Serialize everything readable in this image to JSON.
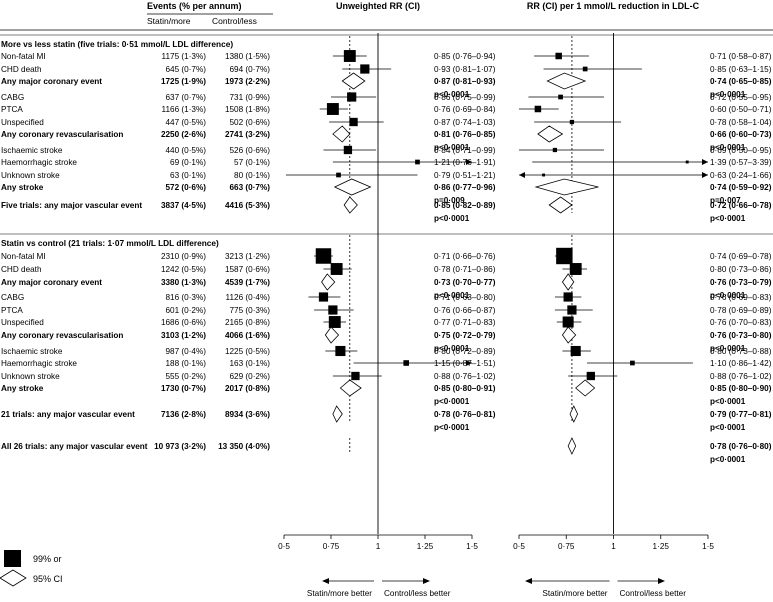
{
  "header": {
    "events_title": "Events (% per annum)",
    "statin_col": "Statin/more",
    "control_col": "Control/less",
    "panel1_title": "Unweighted RR (CI)",
    "panel2_title": "RR (CI) per 1 mmol/L reduction in LDL-C"
  },
  "legend": {
    "square_label": "99% or",
    "diamond_label": "95% CI"
  },
  "axis": {
    "ticks": [
      "0·5",
      "0·75",
      "1",
      "1·25",
      "1·5"
    ],
    "left_arrow_label": "Statin/more better",
    "right_arrow_label": "Control/less better"
  },
  "chart_data": [
    {
      "type": "forest",
      "title": "Unweighted RR (CI)",
      "xlim": [
        0.5,
        1.5
      ],
      "reference_line": 1,
      "dashed_line": 0.85,
      "rows": [
        {
          "label": "More vs less statin (five trials: 0·51 mmol/L LDL difference)",
          "kind": "header"
        },
        {
          "label": "Non-fatal MI",
          "statin": "1175 (1·3%)",
          "control": "1380 (1·5%)",
          "rr": 0.85,
          "lo": 0.76,
          "hi": 0.94,
          "text": "0·85 (0·76–0·94)",
          "kind": "square",
          "size": 1.1
        },
        {
          "label": "CHD death",
          "statin": "645 (0·7%)",
          "control": "694 (0·7%)",
          "rr": 0.93,
          "lo": 0.81,
          "hi": 1.07,
          "text": "0·93 (0·81–1·07)",
          "kind": "square",
          "size": 0.8
        },
        {
          "label": "Any major coronary event",
          "statin": "1725 (1·9%)",
          "control": "1973 (2·2%)",
          "rr": 0.87,
          "lo": 0.81,
          "hi": 0.93,
          "text": "0·87 (0·81–0·93)",
          "p": "p<0·0001",
          "kind": "diamond"
        },
        {
          "label": "CABG",
          "statin": "637 (0·7%)",
          "control": "731 (0·9%)",
          "rr": 0.86,
          "lo": 0.75,
          "hi": 0.99,
          "text": "0·86 (0·75–0·99)",
          "kind": "square",
          "size": 0.8
        },
        {
          "label": "PTCA",
          "statin": "1166 (1·3%)",
          "control": "1508 (1·8%)",
          "rr": 0.76,
          "lo": 0.69,
          "hi": 0.84,
          "text": "0·76 (0·69–0·84)",
          "kind": "square",
          "size": 1.1
        },
        {
          "label": "Unspecified",
          "statin": "447 (0·5%)",
          "control": "502 (0·6%)",
          "rr": 0.87,
          "lo": 0.74,
          "hi": 1.03,
          "text": "0·87 (0·74–1·03)",
          "kind": "square",
          "size": 0.7
        },
        {
          "label": "Any coronary revascularisation",
          "statin": "2250 (2·6%)",
          "control": "2741 (3·2%)",
          "rr": 0.81,
          "lo": 0.76,
          "hi": 0.85,
          "text": "0·81 (0·76–0·85)",
          "p": "p<0·0001",
          "kind": "diamond"
        },
        {
          "label": "Ischaemic stroke",
          "statin": "440 (0·5%)",
          "control": "526 (0·6%)",
          "rr": 0.84,
          "lo": 0.71,
          "hi": 0.99,
          "text": "0·84 (0·71–0·99)",
          "kind": "square",
          "size": 0.7
        },
        {
          "label": "Haemorrhagic stroke",
          "statin": "69 (0·1%)",
          "control": "57 (0·1%)",
          "rr": 1.21,
          "lo": 0.76,
          "hi": 1.91,
          "text": "1·21 (0·76–1·91)",
          "kind": "square",
          "size": 0.3
        },
        {
          "label": "Unknown stroke",
          "statin": "63 (0·1%)",
          "control": "80 (0·1%)",
          "rr": 0.79,
          "lo": 0.51,
          "hi": 1.21,
          "text": "0·79 (0·51–1·21)",
          "kind": "square",
          "size": 0.3
        },
        {
          "label": "Any stroke",
          "statin": "572 (0·6%)",
          "control": "663 (0·7%)",
          "rr": 0.86,
          "lo": 0.77,
          "hi": 0.96,
          "text": "0·86 (0·77–0·96)",
          "p": "p=0·009",
          "kind": "diamond"
        },
        {
          "label": "Five trials: any major vascular event",
          "statin": "3837 (4·5%)",
          "control": "4416 (5·3%)",
          "rr": 0.85,
          "lo": 0.82,
          "hi": 0.89,
          "text": "0·85 (0·82–0·89)",
          "p": "p<0·0001",
          "kind": "diamond"
        },
        {
          "label": "Statin vs control (21 trials: 1·07 mmol/L LDL difference)",
          "kind": "header"
        },
        {
          "label": "Non-fatal MI",
          "statin": "2310 (0·9%)",
          "control": "3213 (1·2%)",
          "rr": 0.71,
          "lo": 0.66,
          "hi": 0.76,
          "text": "0·71 (0·66–0·76)",
          "kind": "square",
          "size": 1.5
        },
        {
          "label": "CHD death",
          "statin": "1242 (0·5%)",
          "control": "1587 (0·6%)",
          "rr": 0.78,
          "lo": 0.71,
          "hi": 0.86,
          "text": "0·78 (0·71–0·86)",
          "kind": "square",
          "size": 1.1
        },
        {
          "label": "Any major coronary event",
          "statin": "3380 (1·3%)",
          "control": "4539 (1·7%)",
          "rr": 0.73,
          "lo": 0.7,
          "hi": 0.77,
          "text": "0·73 (0·70–0·77)",
          "p": "p<0·0001",
          "kind": "diamond"
        },
        {
          "label": "CABG",
          "statin": "816 (0·3%)",
          "control": "1126 (0·4%)",
          "rr": 0.71,
          "lo": 0.63,
          "hi": 0.8,
          "text": "0·71 (0·63–0·80)",
          "kind": "square",
          "size": 0.8
        },
        {
          "label": "PTCA",
          "statin": "601 (0·2%)",
          "control": "775 (0·3%)",
          "rr": 0.76,
          "lo": 0.66,
          "hi": 0.87,
          "text": "0·76 (0·66–0·87)",
          "kind": "square",
          "size": 0.8
        },
        {
          "label": "Unspecified",
          "statin": "1686 (0·6%)",
          "control": "2165 (0·8%)",
          "rr": 0.77,
          "lo": 0.71,
          "hi": 0.83,
          "text": "0·77 (0·71–0·83)",
          "kind": "square",
          "size": 1.1
        },
        {
          "label": "Any coronary revascularisation",
          "statin": "3103 (1·2%)",
          "control": "4066 (1·6%)",
          "rr": 0.75,
          "lo": 0.72,
          "hi": 0.79,
          "text": "0·75 (0·72–0·79)",
          "p": "p<0·0001",
          "kind": "diamond"
        },
        {
          "label": "Ischaemic stroke",
          "statin": "987 (0·4%)",
          "control": "1225 (0·5%)",
          "rr": 0.8,
          "lo": 0.72,
          "hi": 0.89,
          "text": "0·80 (0·72–0·89)",
          "kind": "square",
          "size": 0.9
        },
        {
          "label": "Haemorrhagic stroke",
          "statin": "188 (0·1%)",
          "control": "163 (0·1%)",
          "rr": 1.15,
          "lo": 0.87,
          "hi": 1.51,
          "text": "1·15 (0·87–1·51)",
          "kind": "square",
          "size": 0.4
        },
        {
          "label": "Unknown stroke",
          "statin": "555 (0·2%)",
          "control": "629 (0·2%)",
          "rr": 0.88,
          "lo": 0.76,
          "hi": 1.02,
          "text": "0·88 (0·76–1·02)",
          "kind": "square",
          "size": 0.7
        },
        {
          "label": "Any stroke",
          "statin": "1730 (0·7%)",
          "control": "2017 (0·8%)",
          "rr": 0.85,
          "lo": 0.8,
          "hi": 0.91,
          "text": "0·85 (0·80–0·91)",
          "p": "p<0·0001",
          "kind": "diamond"
        },
        {
          "label": "21 trials: any major vascular event",
          "statin": "7136 (2·8%)",
          "control": "8934 (3·6%)",
          "rr": 0.78,
          "lo": 0.76,
          "hi": 0.81,
          "text": "0·78 (0·76–0·81)",
          "p": "p<0·0001",
          "kind": "diamond"
        },
        {
          "label": "All 26 trials: any major vascular event",
          "statin": "10 973 (3·2%)",
          "control": "13 350 (4·0%)",
          "kind": "diamond-none"
        }
      ]
    },
    {
      "type": "forest",
      "title": "RR (CI) per 1 mmol/L reduction in LDL-C",
      "xlim": [
        0.5,
        1.5
      ],
      "reference_line": 1,
      "dashed_line": 0.78,
      "rows": [
        {
          "kind": "header"
        },
        {
          "rr": 0.71,
          "lo": 0.58,
          "hi": 0.87,
          "text": "0·71 (0·58–0·87)",
          "kind": "square",
          "size": 0.5
        },
        {
          "rr": 0.85,
          "lo": 0.63,
          "hi": 1.15,
          "text": "0·85 (0·63–1·15)",
          "kind": "square",
          "size": 0.3
        },
        {
          "rr": 0.74,
          "lo": 0.65,
          "hi": 0.85,
          "text": "0·74 (0·65–0·85)",
          "p": "p<0·0001",
          "kind": "diamond"
        },
        {
          "rr": 0.72,
          "lo": 0.55,
          "hi": 0.95,
          "text": "0·72 (0·55–0·95)",
          "kind": "square",
          "size": 0.3
        },
        {
          "rr": 0.6,
          "lo": 0.5,
          "hi": 0.71,
          "text": "0·60 (0·50–0·71)",
          "kind": "square",
          "size": 0.5
        },
        {
          "rr": 0.78,
          "lo": 0.58,
          "hi": 1.04,
          "text": "0·78 (0·58–1·04)",
          "kind": "square",
          "size": 0.25
        },
        {
          "rr": 0.66,
          "lo": 0.6,
          "hi": 0.73,
          "text": "0·66 (0·60–0·73)",
          "p": "p<0·0001",
          "kind": "diamond"
        },
        {
          "rr": 0.69,
          "lo": 0.5,
          "hi": 0.95,
          "text": "0·69 (0·50–0·95)",
          "kind": "square",
          "size": 0.25
        },
        {
          "rr": 1.39,
          "lo": 0.57,
          "hi": 3.39,
          "text": "1·39 (0·57–3·39)",
          "kind": "square",
          "size": 0.1
        },
        {
          "rr": 0.63,
          "lo": 0.24,
          "hi": 1.66,
          "text": "0·63 (0·24–1·66)",
          "kind": "square",
          "size": 0.1
        },
        {
          "rr": 0.74,
          "lo": 0.59,
          "hi": 0.92,
          "text": "0·74 (0·59–0·92)",
          "p": "p=0·007",
          "kind": "diamond"
        },
        {
          "rr": 0.72,
          "lo": 0.66,
          "hi": 0.78,
          "text": "0·72 (0·66–0·78)",
          "p": "p<0·0001",
          "kind": "diamond"
        },
        {
          "kind": "header"
        },
        {
          "rr": 0.74,
          "lo": 0.69,
          "hi": 0.78,
          "text": "0·74 (0·69–0·78)",
          "kind": "square",
          "size": 1.6
        },
        {
          "rr": 0.8,
          "lo": 0.73,
          "hi": 0.86,
          "text": "0·80 (0·73–0·86)",
          "kind": "square",
          "size": 1.1
        },
        {
          "rr": 0.76,
          "lo": 0.73,
          "hi": 0.79,
          "text": "0·76 (0·73–0·79)",
          "p": "p<0·0001",
          "kind": "diamond"
        },
        {
          "rr": 0.76,
          "lo": 0.69,
          "hi": 0.83,
          "text": "0·76 (0·69–0·83)",
          "kind": "square",
          "size": 0.8
        },
        {
          "rr": 0.78,
          "lo": 0.69,
          "hi": 0.89,
          "text": "0·78 (0·69–0·89)",
          "kind": "square",
          "size": 0.8
        },
        {
          "rr": 0.76,
          "lo": 0.7,
          "hi": 0.83,
          "text": "0·76 (0·70–0·83)",
          "kind": "square",
          "size": 1.0
        },
        {
          "rr": 0.76,
          "lo": 0.73,
          "hi": 0.8,
          "text": "0·76 (0·73–0·80)",
          "p": "p<0·0001",
          "kind": "diamond"
        },
        {
          "rr": 0.8,
          "lo": 0.73,
          "hi": 0.88,
          "text": "0·80 (0·73–0·88)",
          "kind": "square",
          "size": 0.9
        },
        {
          "rr": 1.1,
          "lo": 0.86,
          "hi": 1.42,
          "text": "1·10 (0·86–1·42)",
          "kind": "square",
          "size": 0.3
        },
        {
          "rr": 0.88,
          "lo": 0.76,
          "hi": 1.02,
          "text": "0·88 (0·76–1·02)",
          "kind": "square",
          "size": 0.7
        },
        {
          "rr": 0.85,
          "lo": 0.8,
          "hi": 0.9,
          "text": "0·85 (0·80–0·90)",
          "p": "p<0·0001",
          "kind": "diamond"
        },
        {
          "rr": 0.79,
          "lo": 0.77,
          "hi": 0.81,
          "text": "0·79 (0·77–0·81)",
          "p": "p<0·0001",
          "kind": "diamond"
        },
        {
          "rr": 0.78,
          "lo": 0.76,
          "hi": 0.8,
          "text": "0·78 (0·76–0·80)",
          "p": "p<0·0001",
          "kind": "diamond"
        }
      ]
    }
  ]
}
